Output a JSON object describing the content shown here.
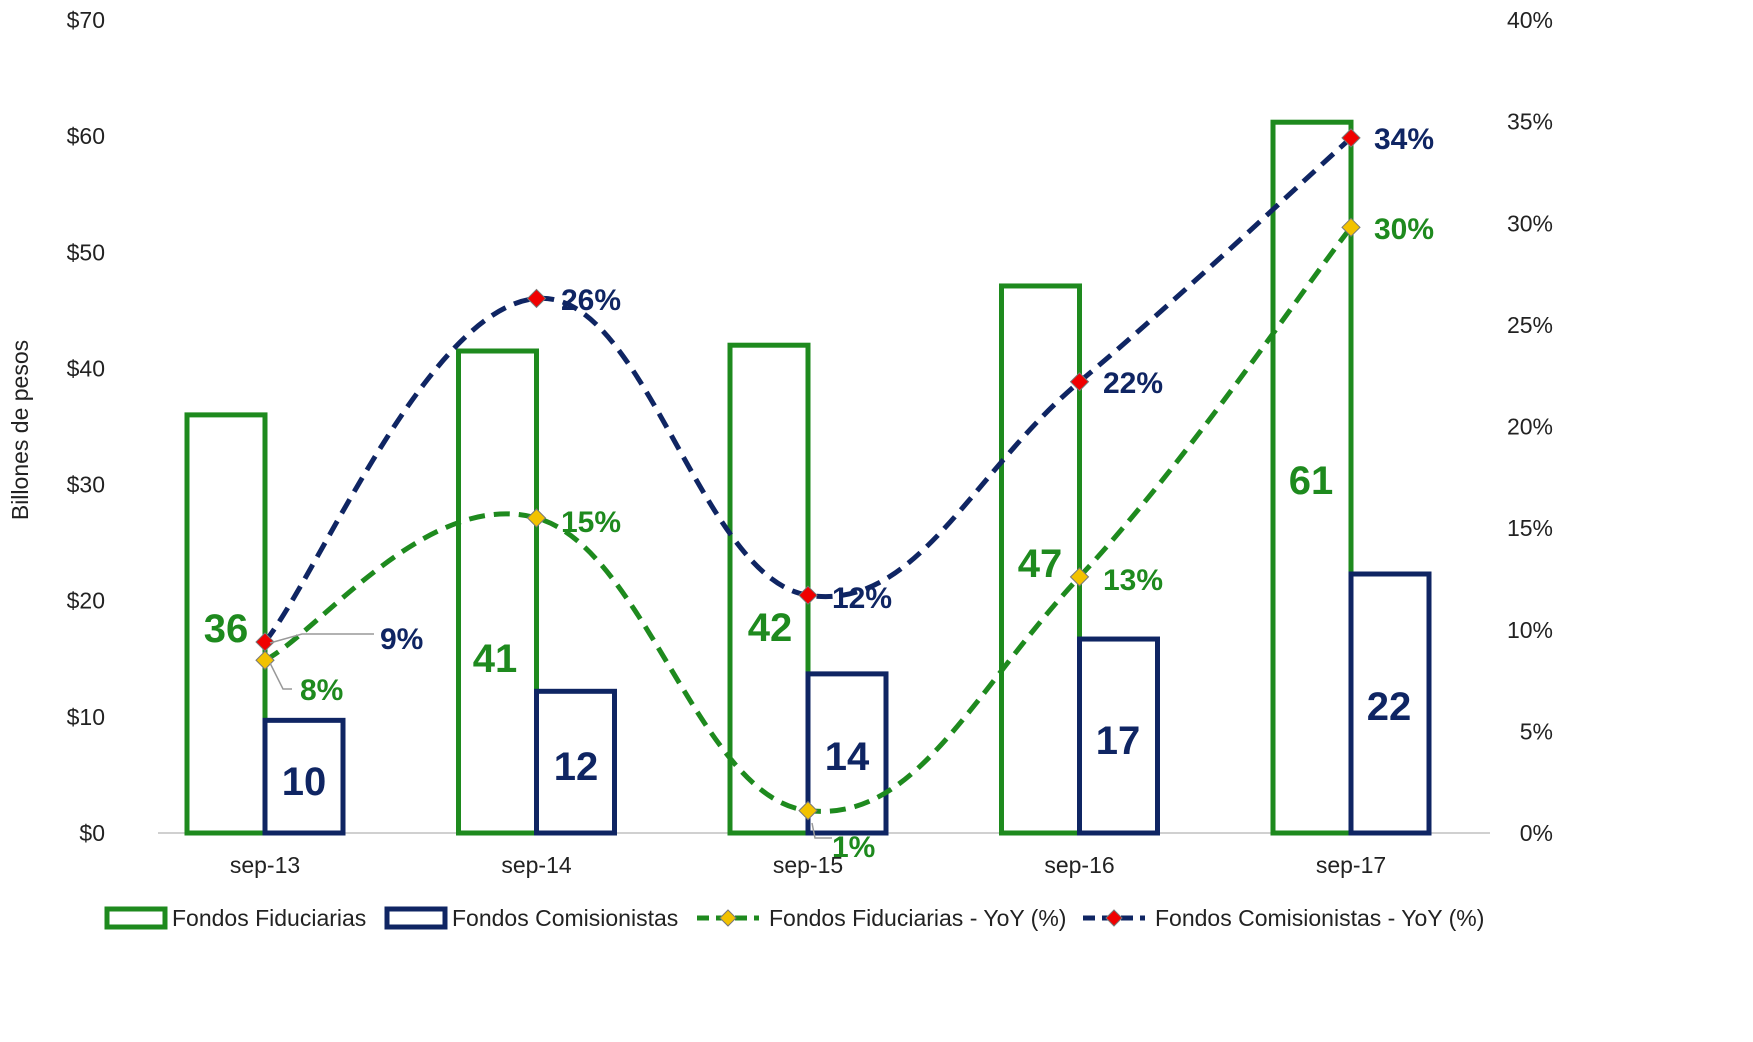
{
  "chart_data": {
    "type": "bar",
    "categories": [
      "sep-13",
      "sep-14",
      "sep-15",
      "sep-16",
      "sep-17"
    ],
    "ylabel": "Billones de pesos",
    "ylim": [
      0,
      70
    ],
    "y_ticks": [
      "$0",
      "$10",
      "$20",
      "$30",
      "$40",
      "$50",
      "$60",
      "$70"
    ],
    "y2lim": [
      0,
      40
    ],
    "y2_ticks": [
      "0%",
      "5%",
      "10%",
      "15%",
      "20%",
      "25%",
      "30%",
      "35%",
      "40%"
    ],
    "grid": false,
    "legend_position": "bottom",
    "bar_series": [
      {
        "name": "Fondos Fiduciarias",
        "color": "#1E8A1E",
        "values": [
          36,
          41.5,
          42,
          47.1,
          61.2
        ],
        "labels": [
          "36",
          "41",
          "42",
          "47",
          "61"
        ]
      },
      {
        "name": "Fondos Comisionistas",
        "color": "#0F2563",
        "values": [
          9.7,
          12.2,
          13.7,
          16.7,
          22.3
        ],
        "labels": [
          "10",
          "12",
          "14",
          "17",
          "22"
        ]
      }
    ],
    "line_series": [
      {
        "name": "Fondos Fiduciarias - YoY (%)",
        "color": "#1E8A1E",
        "marker_color": "#F2C200",
        "values": [
          8.5,
          15.5,
          1.1,
          12.6,
          29.8
        ],
        "labels": [
          "8%",
          "15%",
          "1%",
          "13%",
          "30%"
        ]
      },
      {
        "name": "Fondos Comisionistas - YoY (%)",
        "color": "#0F2563",
        "marker_color": "#F00000",
        "values": [
          9.4,
          26.3,
          11.7,
          22.2,
          34.2
        ],
        "labels": [
          "9%",
          "26%",
          "12%",
          "22%",
          "34%"
        ]
      }
    ]
  }
}
